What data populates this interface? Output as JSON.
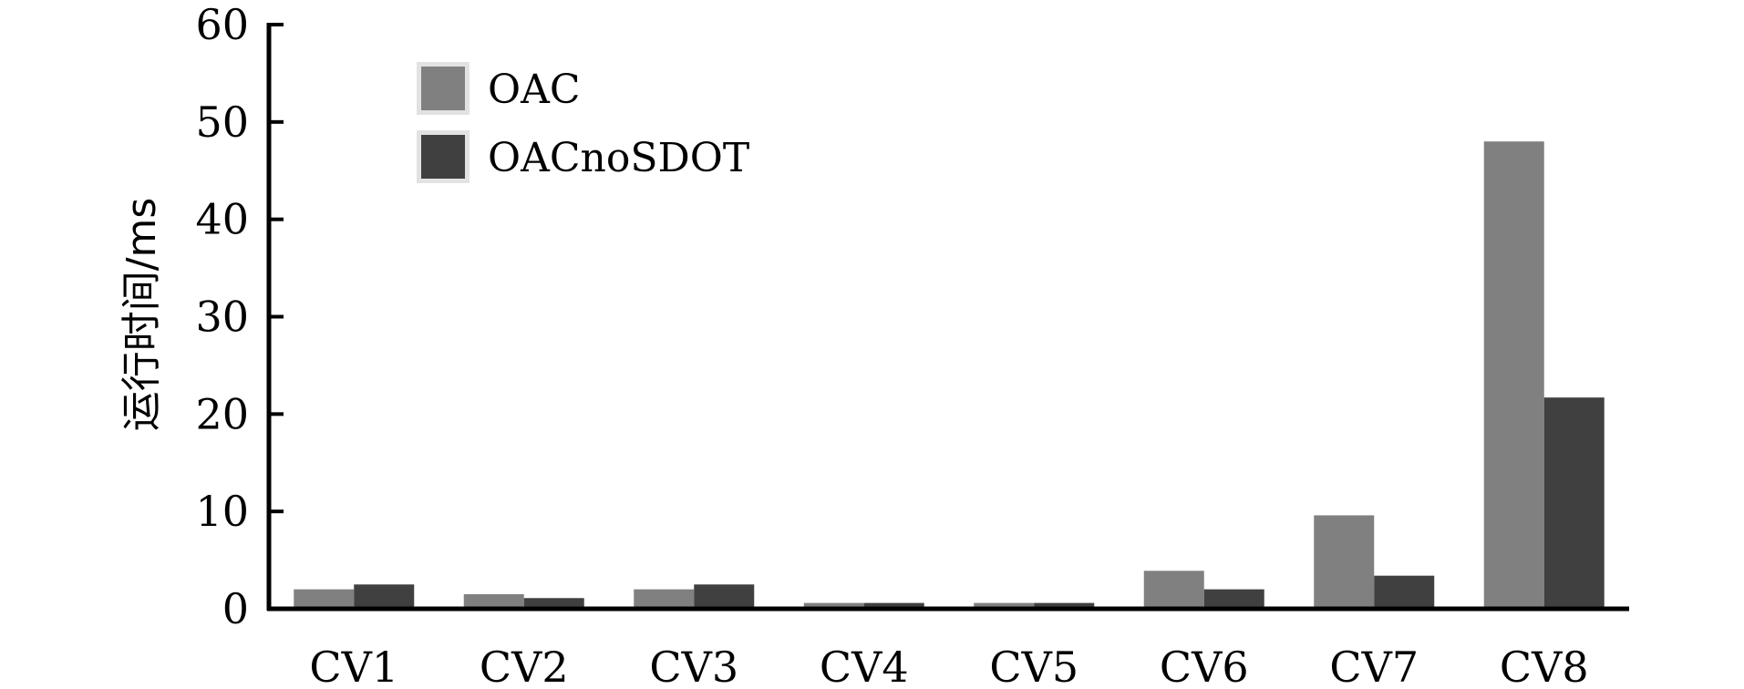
{
  "chart_data": {
    "type": "bar",
    "categories": [
      "CV1",
      "CV2",
      "CV3",
      "CV4",
      "CV5",
      "CV6",
      "CV7",
      "CV8"
    ],
    "series": [
      {
        "name": "OAC",
        "values": [
          2.0,
          1.5,
          2.0,
          0.6,
          0.6,
          3.9,
          9.6,
          48.0
        ],
        "color": "#808080"
      },
      {
        "name": "OACnoSDOT",
        "values": [
          2.5,
          1.1,
          2.5,
          0.6,
          0.6,
          2.0,
          3.4,
          21.7
        ],
        "color": "#404040"
      }
    ],
    "title": "",
    "xlabel": "",
    "ylabel": "运行时间/ms",
    "ylim": [
      0,
      60
    ],
    "yticks": [
      "0",
      "10",
      "20",
      "30",
      "40",
      "50",
      "60"
    ],
    "grid": false,
    "legend": {
      "position": "top-left"
    }
  }
}
